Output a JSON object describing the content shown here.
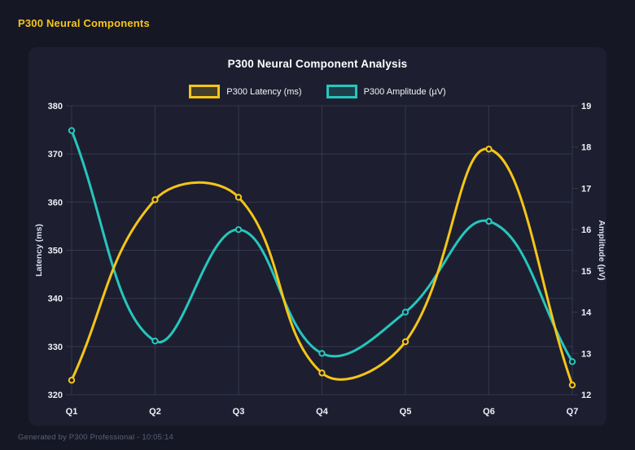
{
  "header": {
    "title": "P300 Neural Components"
  },
  "footer": {
    "text": "Generated by P300 Professional - 10:05:14"
  },
  "colors": {
    "page_bg": "#161724",
    "card_bg": "#1d1f30",
    "grid": "rgba(173,181,210,0.16)",
    "tick_text": "#eef0f6",
    "axis_title_text": "#dce0ec",
    "title_text": "#ffffff",
    "legend_text": "#f2f4f9",
    "footer_text": "#59617a",
    "accent_yellow": "#f5c518",
    "accent_teal": "#26c6bd"
  },
  "chart_data": {
    "type": "line",
    "title": "P300 Neural Component Analysis",
    "categories": [
      "Q1",
      "Q2",
      "Q3",
      "Q4",
      "Q5",
      "Q6",
      "Q7"
    ],
    "series": [
      {
        "name": "P300 Latency (ms)",
        "yaxis": "left",
        "color": "#f5c518",
        "values": [
          323,
          360.5,
          361,
          324.5,
          331,
          371,
          322
        ]
      },
      {
        "name": "P300 Amplitude (µV)",
        "yaxis": "right",
        "color": "#26c6bd",
        "values": [
          18.4,
          13.3,
          16,
          13,
          14,
          16.2,
          12.8
        ]
      }
    ],
    "axes": {
      "left": {
        "label": "Latency (ms)",
        "min": 320,
        "max": 380,
        "step": 10
      },
      "right": {
        "label": "Amplitude (µV)",
        "min": 12,
        "max": 19,
        "step": 1
      }
    },
    "grid": true,
    "legend_position": "top",
    "line_tension": 0.4
  }
}
